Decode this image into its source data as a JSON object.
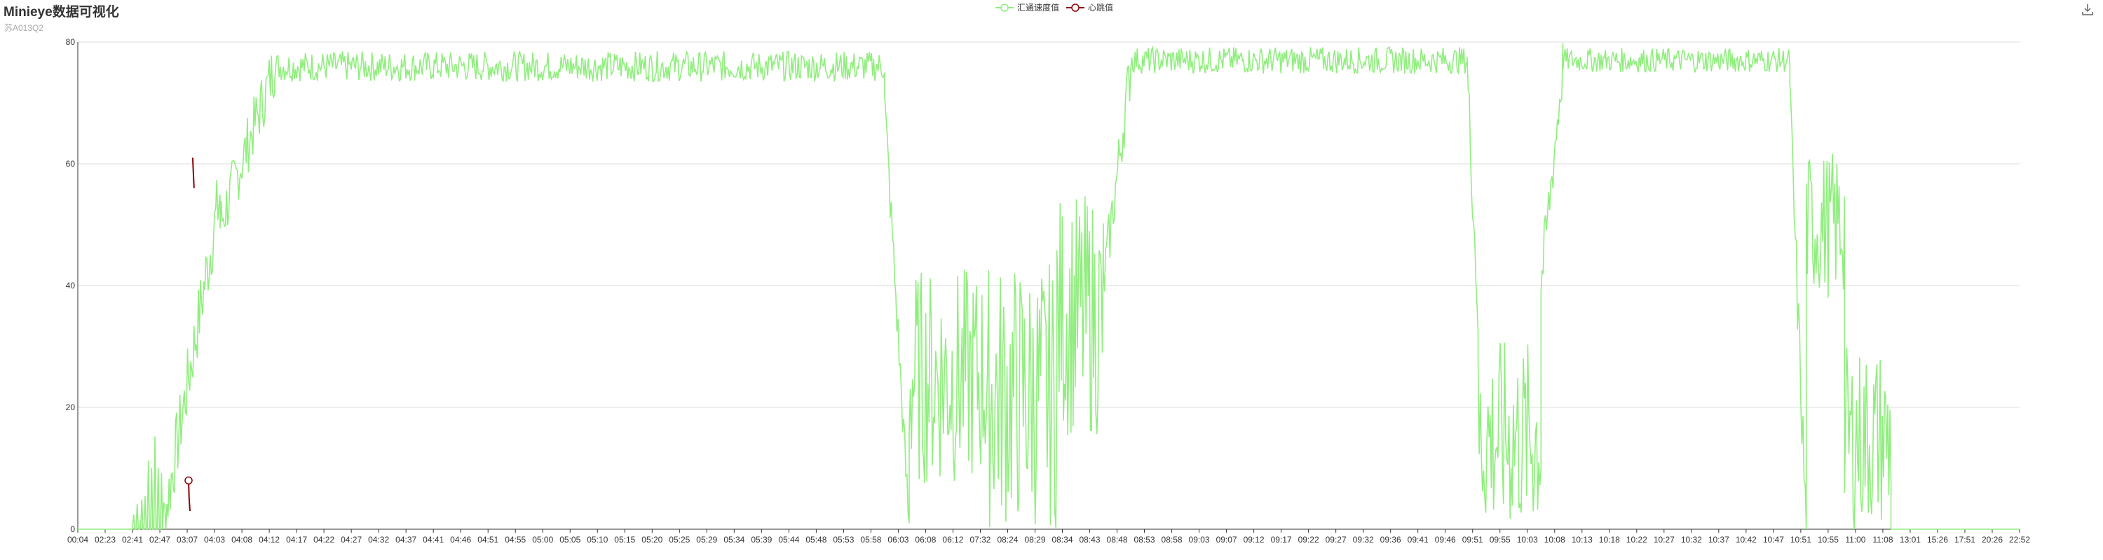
{
  "header": {
    "title": "Minieye数据可视化",
    "subtitle": "苏A013Q2"
  },
  "toolbar": {
    "download_icon": "download-icon"
  },
  "colors": {
    "speed": "#90ee7e",
    "heart": "#8b0000",
    "grid": "#dddddd",
    "axis": "#333333"
  },
  "chart_data": {
    "type": "line",
    "title": "Minieye数据可视化",
    "subtitle": "苏A013Q2",
    "xlabel": "",
    "ylabel": "",
    "ylim": [
      0,
      80
    ],
    "yticks": [
      0,
      20,
      40,
      60,
      80
    ],
    "grid": true,
    "legend_position": "top-center",
    "x_tick_labels": [
      "00:04",
      "02:23",
      "02:41",
      "02:47",
      "03:07",
      "04:03",
      "04:08",
      "04:12",
      "04:17",
      "04:22",
      "04:27",
      "04:32",
      "04:37",
      "04:41",
      "04:46",
      "04:51",
      "04:55",
      "05:00",
      "05:05",
      "05:10",
      "05:15",
      "05:20",
      "05:25",
      "05:29",
      "05:34",
      "05:39",
      "05:44",
      "05:48",
      "05:53",
      "05:58",
      "06:03",
      "06:08",
      "06:12",
      "07:32",
      "08:24",
      "08:29",
      "08:34",
      "08:43",
      "08:48",
      "08:53",
      "08:58",
      "09:03",
      "09:07",
      "09:12",
      "09:17",
      "09:22",
      "09:27",
      "09:32",
      "09:36",
      "09:41",
      "09:46",
      "09:51",
      "09:55",
      "10:03",
      "10:08",
      "10:13",
      "10:18",
      "10:22",
      "10:27",
      "10:32",
      "10:37",
      "10:42",
      "10:47",
      "10:51",
      "10:55",
      "11:00",
      "11:08",
      "13:01",
      "15:26",
      "17:51",
      "20:26",
      "22:52"
    ],
    "series": [
      {
        "name": "汇通速度值",
        "color": "#90ee7e",
        "segments": [
          {
            "x0": 0,
            "x1": 2,
            "mode": "flat",
            "level": 0
          },
          {
            "x0": 2,
            "x1": 2.3,
            "mode": "spikes",
            "level": 0,
            "peaks": [
              3,
              5,
              2
            ]
          },
          {
            "x0": 2.3,
            "x1": 3.1,
            "mode": "spikes",
            "level": 0,
            "peaks": [
              7,
              14,
              16,
              12
            ]
          },
          {
            "x0": 3.1,
            "x1": 5.2,
            "mode": "rise",
            "from": 0,
            "to": 55,
            "noise": 6
          },
          {
            "x0": 5.2,
            "x1": 7.2,
            "mode": "rise",
            "from": 50,
            "to": 76,
            "noise": 5
          },
          {
            "x0": 7.2,
            "x1": 29.5,
            "mode": "noisy",
            "level": 76,
            "noise": 2.5
          },
          {
            "x0": 29.5,
            "x1": 30.4,
            "mode": "drop",
            "from": 70,
            "to": 0,
            "noise": 4
          },
          {
            "x0": 30.4,
            "x1": 33.3,
            "mode": "noisy",
            "level": 25,
            "noise": 18
          },
          {
            "x0": 33.3,
            "x1": 35.8,
            "mode": "noisy",
            "level": 22,
            "noise": 22
          },
          {
            "x0": 35.8,
            "x1": 37.5,
            "mode": "noisy",
            "level": 35,
            "noise": 20
          },
          {
            "x0": 37.5,
            "x1": 38.5,
            "mode": "rise",
            "from": 40,
            "to": 76,
            "noise": 5
          },
          {
            "x0": 38.5,
            "x1": 50.8,
            "mode": "noisy",
            "level": 77,
            "noise": 2.2
          },
          {
            "x0": 50.8,
            "x1": 51.2,
            "mode": "drop",
            "from": 76,
            "to": 35,
            "noise": 5
          },
          {
            "x0": 51.2,
            "x1": 53.5,
            "mode": "noisy",
            "level": 15,
            "noise": 16
          },
          {
            "x0": 53.5,
            "x1": 54.3,
            "mode": "rise",
            "from": 40,
            "to": 76,
            "noise": 5
          },
          {
            "x0": 54.3,
            "x1": 62.6,
            "mode": "noisy",
            "level": 77,
            "noise": 2
          },
          {
            "x0": 62.6,
            "x1": 63.2,
            "mode": "drop",
            "from": 70,
            "to": 0,
            "noise": 6
          },
          {
            "x0": 63.2,
            "x1": 64.6,
            "mode": "noisy",
            "level": 50,
            "noise": 12
          },
          {
            "x0": 64.6,
            "x1": 66.3,
            "mode": "noisy",
            "level": 15,
            "noise": 15
          },
          {
            "x0": 66.3,
            "x1": 71,
            "mode": "flat",
            "level": 0
          }
        ]
      },
      {
        "name": "心跳值",
        "color": "#8b0000",
        "points": [
          {
            "x": 4.05,
            "y": 8
          },
          {
            "x": 4.07,
            "y": 5
          },
          {
            "x": 4.1,
            "y": 3
          },
          {
            "x": 4.2,
            "y": 61
          },
          {
            "x": 4.25,
            "y": 56
          }
        ]
      }
    ]
  }
}
